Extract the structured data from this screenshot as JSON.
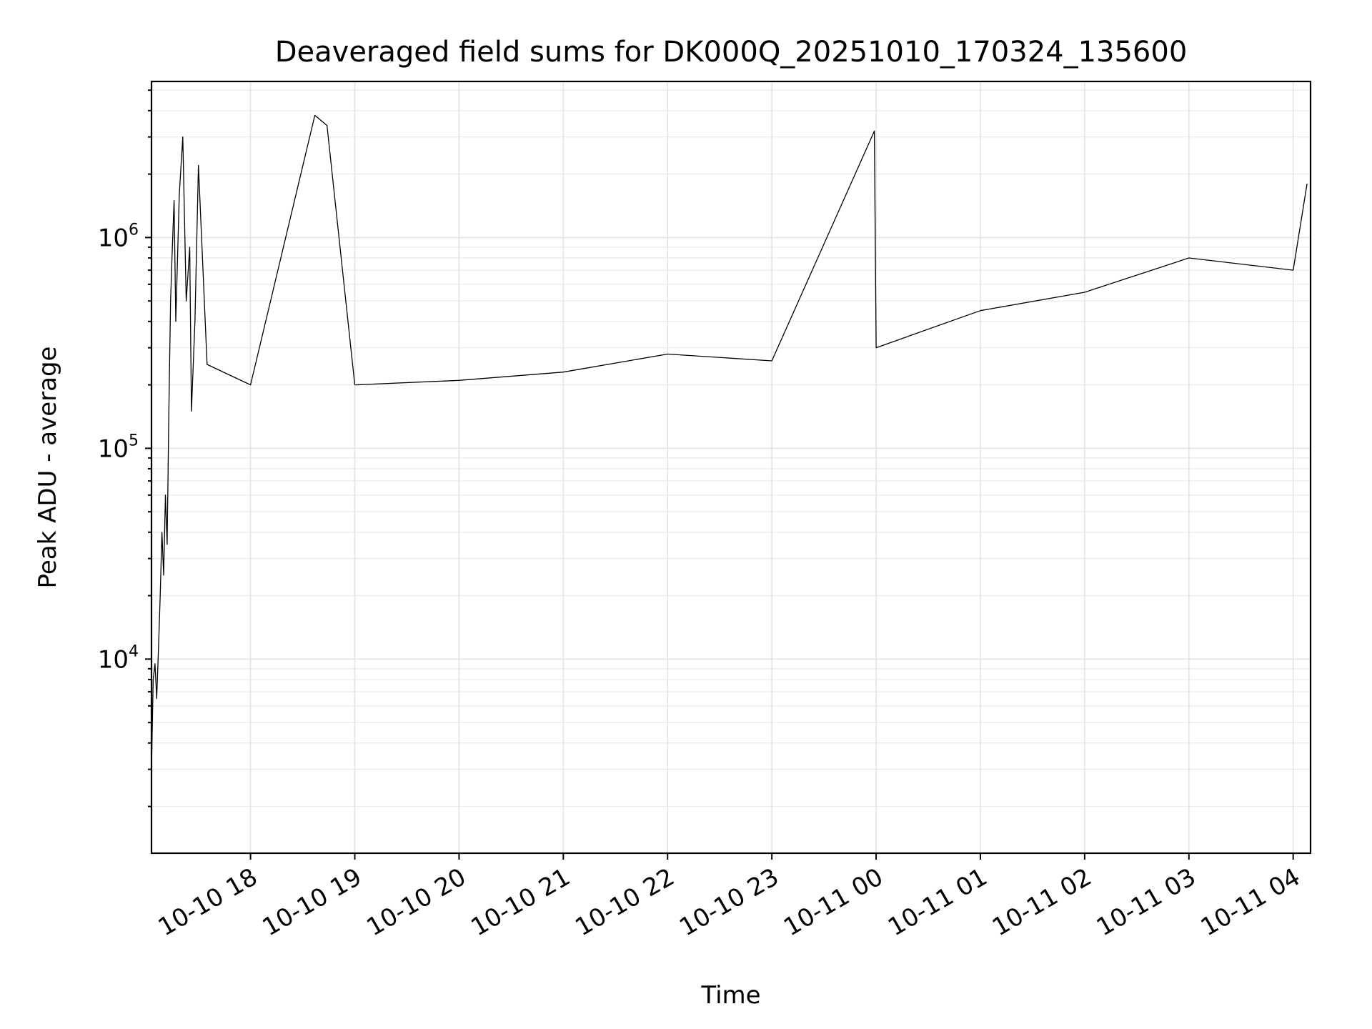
{
  "chart_data": {
    "type": "line",
    "title": "Deaveraged field sums for DK000Q_20251010_170324_135600",
    "xlabel": "Time",
    "ylabel": "Peak ADU - average",
    "yscale": "log",
    "xlim": [
      "2025-10-10 17:03",
      "2025-10-11 04:10"
    ],
    "ylim": [
      1200,
      5500000
    ],
    "grid": true,
    "x_ticks": [
      {
        "value": "2025-10-10 18:00",
        "label": "10-10 18"
      },
      {
        "value": "2025-10-10 19:00",
        "label": "10-10 19"
      },
      {
        "value": "2025-10-10 20:00",
        "label": "10-10 20"
      },
      {
        "value": "2025-10-10 21:00",
        "label": "10-10 21"
      },
      {
        "value": "2025-10-10 22:00",
        "label": "10-10 22"
      },
      {
        "value": "2025-10-10 23:00",
        "label": "10-10 23"
      },
      {
        "value": "2025-10-11 00:00",
        "label": "10-11 00"
      },
      {
        "value": "2025-10-11 01:00",
        "label": "10-11 01"
      },
      {
        "value": "2025-10-11 02:00",
        "label": "10-11 02"
      },
      {
        "value": "2025-10-11 03:00",
        "label": "10-11 03"
      },
      {
        "value": "2025-10-11 04:00",
        "label": "10-11 04"
      }
    ],
    "y_ticks": [
      {
        "value": 10000,
        "base": "10",
        "exp": "4"
      },
      {
        "value": 100000,
        "base": "10",
        "exp": "5"
      },
      {
        "value": 1000000,
        "base": "10",
        "exp": "6"
      }
    ],
    "series": [
      {
        "color": "#000000",
        "points": [
          [
            "2025-10-10 17:03",
            3000
          ],
          [
            "2025-10-10 17:04",
            8000
          ],
          [
            "2025-10-10 17:05",
            9500
          ],
          [
            "2025-10-10 17:06",
            6500
          ],
          [
            "2025-10-10 17:07",
            11000
          ],
          [
            "2025-10-10 17:08",
            20000
          ],
          [
            "2025-10-10 17:09",
            40000
          ],
          [
            "2025-10-10 17:10",
            25000
          ],
          [
            "2025-10-10 17:11",
            60000
          ],
          [
            "2025-10-10 17:12",
            35000
          ],
          [
            "2025-10-10 17:13",
            150000
          ],
          [
            "2025-10-10 17:14",
            500000
          ],
          [
            "2025-10-10 17:15",
            900000
          ],
          [
            "2025-10-10 17:16",
            1500000
          ],
          [
            "2025-10-10 17:17",
            400000
          ],
          [
            "2025-10-10 17:19",
            1600000
          ],
          [
            "2025-10-10 17:21",
            3000000
          ],
          [
            "2025-10-10 17:23",
            500000
          ],
          [
            "2025-10-10 17:25",
            900000
          ],
          [
            "2025-10-10 17:26",
            150000
          ],
          [
            "2025-10-10 17:28",
            400000
          ],
          [
            "2025-10-10 17:30",
            2200000
          ],
          [
            "2025-10-10 17:35",
            250000
          ],
          [
            "2025-10-10 18:00",
            200000
          ],
          [
            "2025-10-10 18:37",
            3800000
          ],
          [
            "2025-10-10 18:44",
            3400000
          ],
          [
            "2025-10-10 19:00",
            200000
          ],
          [
            "2025-10-10 20:00",
            210000
          ],
          [
            "2025-10-10 21:00",
            230000
          ],
          [
            "2025-10-10 22:00",
            280000
          ],
          [
            "2025-10-10 23:00",
            260000
          ],
          [
            "2025-10-10 23:59",
            3200000
          ],
          [
            "2025-10-11 00:00",
            300000
          ],
          [
            "2025-10-11 01:00",
            450000
          ],
          [
            "2025-10-11 02:00",
            550000
          ],
          [
            "2025-10-11 03:00",
            800000
          ],
          [
            "2025-10-11 04:00",
            700000
          ],
          [
            "2025-10-11 04:08",
            1800000
          ]
        ]
      }
    ]
  }
}
